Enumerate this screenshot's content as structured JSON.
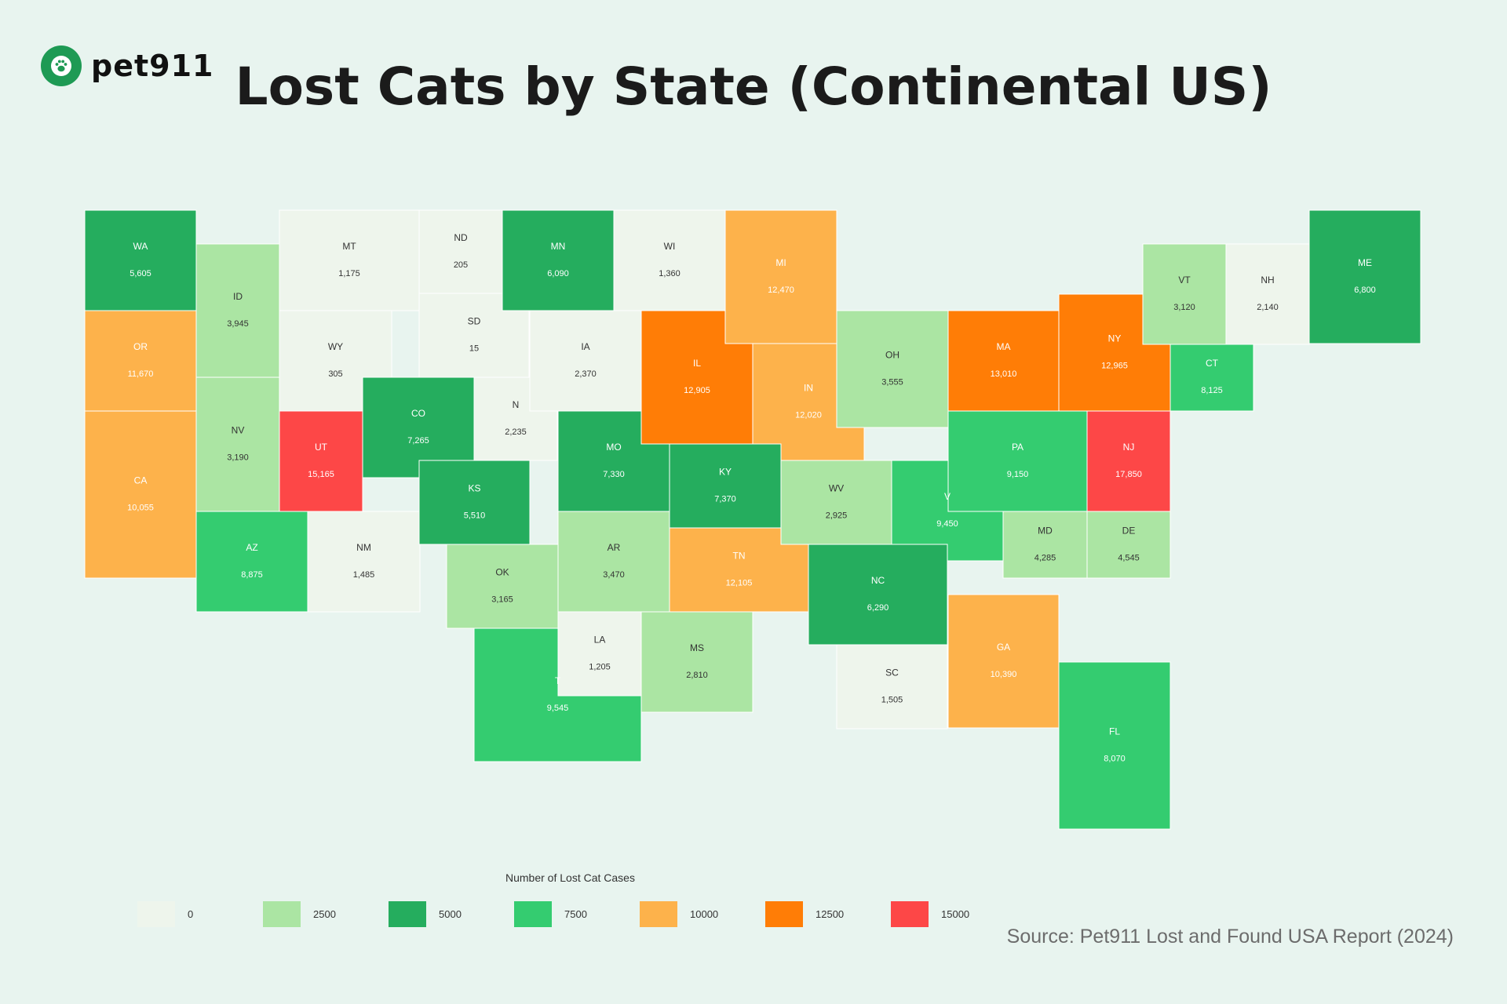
{
  "header": {
    "logo_text": "pet911",
    "logo_icon": "paw-icon",
    "title": "Lost Cats by State (Continental US)"
  },
  "colors": {
    "background": "#e8f4ef",
    "brand": "#1e9a54",
    "scale": [
      "#eef5ec",
      "#abe5a3",
      "#25ad5e",
      "#34cc70",
      "#fdb24b",
      "#ff7d06",
      "#fd4747"
    ]
  },
  "legend": {
    "title": "Number of Lost Cat Cases",
    "items": [
      {
        "label": "0",
        "color": "#eef5ec"
      },
      {
        "label": "2500",
        "color": "#abe5a3"
      },
      {
        "label": "5000",
        "color": "#25ad5e"
      },
      {
        "label": "7500",
        "color": "#34cc70"
      },
      {
        "label": "10000",
        "color": "#fdb24b"
      },
      {
        "label": "12500",
        "color": "#ff7d06"
      },
      {
        "label": "15000",
        "color": "#fd4747"
      }
    ]
  },
  "chart_data": {
    "type": "heatmap",
    "title": "Lost Cats by State (Continental US)",
    "value_label": "Number of Lost Cat Cases",
    "states": [
      {
        "abbr": "WA",
        "value": 5605,
        "value_label": "5,605"
      },
      {
        "abbr": "OR",
        "value": 11670,
        "value_label": "11,670"
      },
      {
        "abbr": "CA",
        "value": 10055,
        "value_label": "10,055"
      },
      {
        "abbr": "ID",
        "value": 3945,
        "value_label": "3,945"
      },
      {
        "abbr": "NV",
        "value": 3190,
        "value_label": "3,190"
      },
      {
        "abbr": "MT",
        "value": 1175,
        "value_label": "1,175"
      },
      {
        "abbr": "WY",
        "value": 305,
        "value_label": "305"
      },
      {
        "abbr": "UT",
        "value": 15165,
        "value_label": "15,165"
      },
      {
        "abbr": "AZ",
        "value": 8875,
        "value_label": "8,875"
      },
      {
        "abbr": "NM",
        "value": 1485,
        "value_label": "1,485"
      },
      {
        "abbr": "CO",
        "value": 7265,
        "value_label": "7,265"
      },
      {
        "abbr": "ND",
        "value": 205,
        "value_label": "205"
      },
      {
        "abbr": "SD",
        "value": 15,
        "value_label": "15"
      },
      {
        "abbr": "NE",
        "value": 2235,
        "value_label": "2,235",
        "visible_label": "N"
      },
      {
        "abbr": "KS",
        "value": 5510,
        "value_label": "5,510"
      },
      {
        "abbr": "OK",
        "value": 3165,
        "value_label": "3,165"
      },
      {
        "abbr": "TX",
        "value": 9545,
        "value_label": "9,545",
        "visible_label": "T"
      },
      {
        "abbr": "MN",
        "value": 6090,
        "value_label": "6,090"
      },
      {
        "abbr": "IA",
        "value": 2370,
        "value_label": "2,370"
      },
      {
        "abbr": "MO",
        "value": 7330,
        "value_label": "7,330"
      },
      {
        "abbr": "AR",
        "value": 3470,
        "value_label": "3,470"
      },
      {
        "abbr": "LA",
        "value": 1205,
        "value_label": "1,205"
      },
      {
        "abbr": "WI",
        "value": 1360,
        "value_label": "1,360"
      },
      {
        "abbr": "IL",
        "value": 12905,
        "value_label": "12,905"
      },
      {
        "abbr": "MI",
        "value": 12470,
        "value_label": "12,470"
      },
      {
        "abbr": "IN",
        "value": 12020,
        "value_label": "12,020"
      },
      {
        "abbr": "KY",
        "value": 7370,
        "value_label": "7,370"
      },
      {
        "abbr": "TN",
        "value": 12105,
        "value_label": "12,105"
      },
      {
        "abbr": "MS",
        "value": 2810,
        "value_label": "2,810"
      },
      {
        "abbr": "OH",
        "value": 3555,
        "value_label": "3,555"
      },
      {
        "abbr": "WV",
        "value": 2925,
        "value_label": "2,925"
      },
      {
        "abbr": "VA",
        "value": 9450,
        "value_label": "9,450",
        "visible_label": "V"
      },
      {
        "abbr": "NC",
        "value": 6290,
        "value_label": "6,290"
      },
      {
        "abbr": "SC",
        "value": 1505,
        "value_label": "1,505"
      },
      {
        "abbr": "GA",
        "value": 10390,
        "value_label": "10,390"
      },
      {
        "abbr": "FL",
        "value": 8070,
        "value_label": "8,070"
      },
      {
        "abbr": "PA",
        "value": 9150,
        "value_label": "9,150"
      },
      {
        "abbr": "NY",
        "value": 12965,
        "value_label": "12,965"
      },
      {
        "abbr": "NJ",
        "value": 17850,
        "value_label": "17,850"
      },
      {
        "abbr": "MD",
        "value": 4285,
        "value_label": "4,285"
      },
      {
        "abbr": "DE",
        "value": 4545,
        "value_label": "4,545"
      },
      {
        "abbr": "MA",
        "value": 13010,
        "value_label": "13,010"
      },
      {
        "abbr": "CT",
        "value": 8125,
        "value_label": "8,125"
      },
      {
        "abbr": "VT",
        "value": 3120,
        "value_label": "3,120"
      },
      {
        "abbr": "NH",
        "value": 2140,
        "value_label": "2,140"
      },
      {
        "abbr": "ME",
        "value": 6800,
        "value_label": "6,800"
      }
    ]
  },
  "source": "Source: Pet911 Lost and Found USA Report (2024)"
}
